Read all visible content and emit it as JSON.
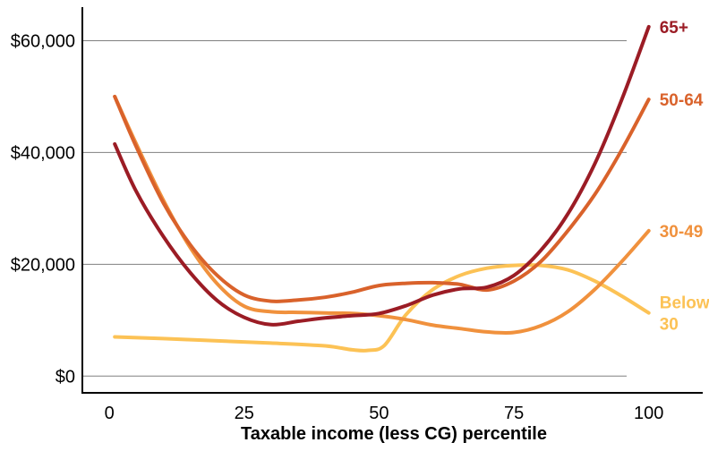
{
  "chart_data": {
    "type": "line",
    "title": "",
    "xlabel": "Taxable income (less CG) percentile",
    "ylabel": "",
    "xlim": [
      -5,
      110
    ],
    "ylim": [
      -3000,
      66000
    ],
    "xticks": [
      0,
      25,
      50,
      75,
      100
    ],
    "xtick_labels": [
      "0",
      "25",
      "50",
      "75",
      "100"
    ],
    "yticks": [
      0,
      20000,
      40000,
      60000
    ],
    "ytick_labels": [
      "$0",
      "$20,000",
      "$40,000",
      "$60,000"
    ],
    "grid": "horizontal",
    "legend": "direct labels at line ends (right)",
    "series": [
      {
        "name": "65+",
        "label_lines": [
          "65+"
        ],
        "color": "#9b1c25",
        "x": [
          1,
          5,
          10,
          15,
          20,
          25,
          30,
          35,
          40,
          45,
          50,
          55,
          60,
          65,
          70,
          75,
          80,
          85,
          90,
          95,
          100
        ],
        "y": [
          41500,
          33000,
          25000,
          18500,
          13500,
          10500,
          9200,
          9800,
          10400,
          10800,
          11200,
          12600,
          14500,
          15600,
          15900,
          18000,
          22500,
          29000,
          38000,
          49500,
          62500
        ]
      },
      {
        "name": "50-64",
        "label_lines": [
          "50-64"
        ],
        "color": "#d9622b",
        "x": [
          1,
          5,
          10,
          15,
          20,
          25,
          30,
          35,
          40,
          45,
          50,
          55,
          60,
          65,
          70,
          75,
          80,
          85,
          90,
          95,
          100
        ],
        "y": [
          50000,
          41000,
          31000,
          23500,
          18000,
          14500,
          13400,
          13600,
          14100,
          15000,
          16200,
          16600,
          16700,
          16400,
          15400,
          17000,
          20500,
          26000,
          32500,
          40500,
          49500
        ]
      },
      {
        "name": "30-49",
        "label_lines": [
          "30-49"
        ],
        "color": "#f0913d",
        "x": [
          1,
          5,
          10,
          15,
          20,
          25,
          30,
          35,
          40,
          45,
          50,
          55,
          60,
          65,
          70,
          75,
          80,
          85,
          90,
          95,
          100
        ],
        "y": [
          50000,
          41500,
          31500,
          23000,
          16500,
          12500,
          11500,
          11400,
          11300,
          11200,
          10800,
          10100,
          9100,
          8500,
          7900,
          7800,
          9000,
          11500,
          15500,
          20500,
          26000
        ]
      },
      {
        "name": "Below 30",
        "label_lines": [
          "Below",
          "30"
        ],
        "color": "#fcc255",
        "x": [
          1,
          10,
          20,
          30,
          40,
          45,
          48,
          51,
          55,
          60,
          65,
          70,
          75,
          80,
          85,
          90,
          95,
          100
        ],
        "y": [
          7000,
          6700,
          6300,
          5900,
          5400,
          4700,
          4600,
          5500,
          11000,
          15500,
          18000,
          19300,
          19800,
          19800,
          19000,
          17000,
          14300,
          11300
        ]
      }
    ]
  }
}
